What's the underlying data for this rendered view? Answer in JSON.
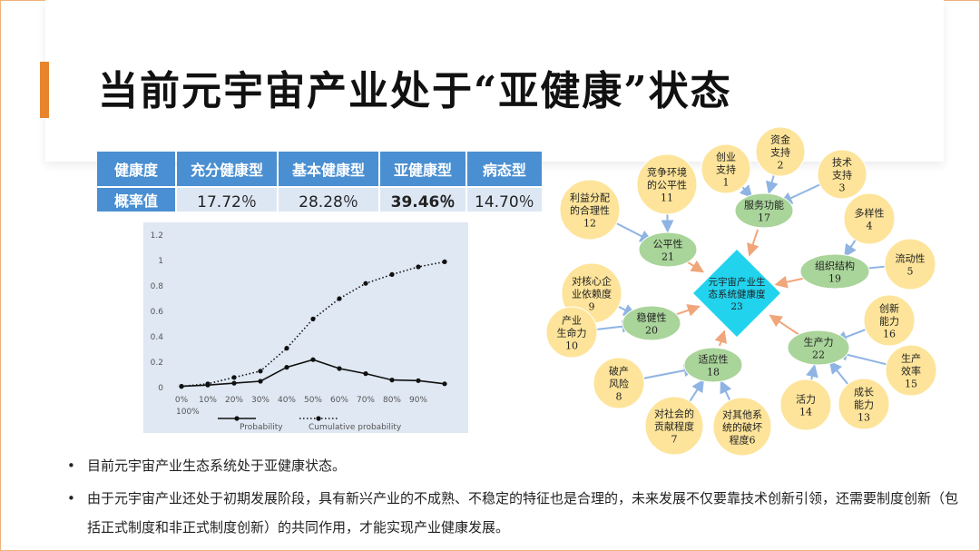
{
  "colors": {
    "accent": "#e8842c",
    "table_header": "#4a8fd1",
    "table_body": "#dde7f4",
    "yellow_node": "#fde49a",
    "green_node": "#a9d49a",
    "center_node": "#22d3ee",
    "blue_arrow": "#8fb4e3",
    "orange_arrow": "#f0a57a"
  },
  "slide": {
    "title": "当前元宇宙产业处于“亚健康”状态"
  },
  "table": {
    "headers": [
      "健康度",
      "充分健康型",
      "基本健康型",
      "亚健康型",
      "病态型"
    ],
    "row_label": "概率值",
    "values": [
      "17.72％",
      "28.28％",
      "39.46％",
      "14.70％"
    ]
  },
  "chart_data": {
    "type": "line",
    "x_tick_labels": [
      "0%",
      "10%",
      "20%",
      "30%",
      "40%",
      "50%",
      "60%",
      "70%",
      "80%",
      "90%",
      "100%"
    ],
    "y_tick_labels": [
      "0",
      "0.2",
      "0.4",
      "0.6",
      "0.8",
      "1",
      "1.2"
    ],
    "ylim": [
      0,
      1.2
    ],
    "x_positions": [
      0,
      1,
      2,
      3,
      4,
      5,
      6,
      7,
      8,
      9,
      10
    ],
    "series": [
      {
        "name": "Probability",
        "style": "solid",
        "values": [
          0.01,
          0.02,
          0.035,
          0.05,
          0.16,
          0.22,
          0.15,
          0.11,
          0.06,
          0.055,
          0.03
        ]
      },
      {
        "name": "Cumulative probability",
        "style": "dotted",
        "values": [
          0.01,
          0.03,
          0.08,
          0.13,
          0.31,
          0.54,
          0.7,
          0.82,
          0.89,
          0.95,
          0.99
        ]
      }
    ],
    "legend_placement": "bottom",
    "grid": false
  },
  "diagram": {
    "center": {
      "label_lines": [
        "元宇宙产业生",
        "态系统健康度",
        "23"
      ]
    },
    "mid_nodes": [
      {
        "id": "n17",
        "lines": [
          "服务功能",
          "17"
        ]
      },
      {
        "id": "n21",
        "lines": [
          "公平性",
          "21"
        ]
      },
      {
        "id": "n19",
        "lines": [
          "组织结构",
          "19"
        ]
      },
      {
        "id": "n20",
        "lines": [
          "稳健性",
          "20"
        ]
      },
      {
        "id": "n22",
        "lines": [
          "生产力",
          "22"
        ]
      },
      {
        "id": "n18",
        "lines": [
          "适应性",
          "18"
        ]
      }
    ],
    "leaf_nodes": [
      {
        "id": "n1",
        "lines": [
          "创业",
          "支持",
          "1"
        ]
      },
      {
        "id": "n2",
        "lines": [
          "资金",
          "支持",
          "2"
        ]
      },
      {
        "id": "n3",
        "lines": [
          "技术",
          "支持",
          "3"
        ]
      },
      {
        "id": "n11",
        "lines": [
          "竞争环境",
          "的公平性",
          "11"
        ]
      },
      {
        "id": "n12",
        "lines": [
          "利益分配",
          "的合理性",
          "12"
        ]
      },
      {
        "id": "n4",
        "lines": [
          "多样性",
          "4"
        ]
      },
      {
        "id": "n5",
        "lines": [
          "流动性",
          "5"
        ]
      },
      {
        "id": "n9",
        "lines": [
          "对核心企",
          "业依赖度",
          "9"
        ]
      },
      {
        "id": "n10",
        "lines": [
          "产业",
          "生命力",
          "10"
        ]
      },
      {
        "id": "n16",
        "lines": [
          "创新",
          "能力",
          "16"
        ]
      },
      {
        "id": "n15",
        "lines": [
          "生产",
          "效率",
          "15"
        ]
      },
      {
        "id": "n8",
        "lines": [
          "破产",
          "风险",
          "8"
        ]
      },
      {
        "id": "n14",
        "lines": [
          "活力",
          "14"
        ]
      },
      {
        "id": "n13",
        "lines": [
          "成长",
          "能力",
          "13"
        ]
      },
      {
        "id": "n7",
        "lines": [
          "对社会的",
          "贡献程度",
          "7"
        ]
      },
      {
        "id": "n6",
        "lines": [
          "对其他系",
          "统的破坏",
          "程度6"
        ]
      }
    ]
  },
  "bullets": [
    {
      "dot": "•",
      "text": "目前元宇宙产业生态系统处于亚健康状态。"
    },
    {
      "dot": "•",
      "text": "由于元宇宙产业还处于初期发展阶段，具有新兴产业的不成熟、不稳定的特征也是合理的，未来发展不仅要靠技术创新引领，还需要制度创新（包括正式制度和非正式制度创新）的共同作用，才能实现产业健康发展。"
    }
  ]
}
